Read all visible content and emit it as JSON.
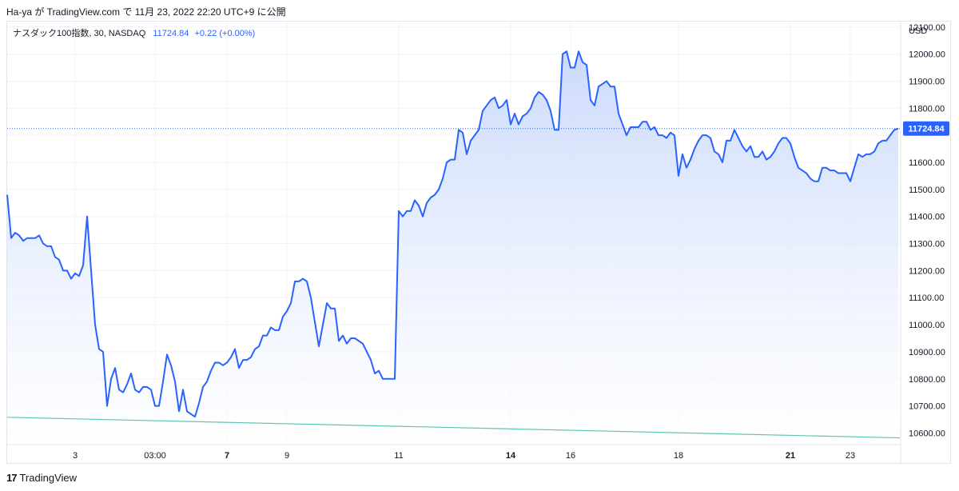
{
  "header": {
    "publish_line": "Ha-ya が TradingView.com で 11月 23, 2022 22:20 UTC+9 に公開"
  },
  "legend": {
    "symbol": "ナスダック100指数, 30, NASDAQ",
    "price": "11724.84",
    "change": "+0.22 (+0.00%)"
  },
  "footer": {
    "logo_glyph": "17",
    "brand": "TradingView"
  },
  "colors": {
    "line": "#2962ff",
    "area_top": "#c6d6fb",
    "area_bottom": "#ffffff",
    "trendline": "#5fc4b3",
    "price_label_bg": "#2962ff",
    "grid": "#f0f3fa"
  },
  "chart_data": {
    "type": "area",
    "currency_label": "USD",
    "last_price_label": "11724.84",
    "last_price": 11724.84,
    "ylim": [
      10560,
      12120
    ],
    "y_ticks": [
      {
        "value": 10600,
        "label": "10600.00"
      },
      {
        "value": 10700,
        "label": "10700.00"
      },
      {
        "value": 10800,
        "label": "10800.00"
      },
      {
        "value": 10900,
        "label": "10900.00"
      },
      {
        "value": 11000,
        "label": "11000.00"
      },
      {
        "value": 11100,
        "label": "11100.00"
      },
      {
        "value": 11200,
        "label": "11200.00"
      },
      {
        "value": 11300,
        "label": "11300.00"
      },
      {
        "value": 11400,
        "label": "11400.00"
      },
      {
        "value": 11500,
        "label": "11500.00"
      },
      {
        "value": 11600,
        "label": "11600.00"
      },
      {
        "value": 11700,
        "label": "11700.00"
      },
      {
        "value": 11800,
        "label": "11800.00"
      },
      {
        "value": 11900,
        "label": "11900.00"
      },
      {
        "value": 12000,
        "label": "12000.00"
      },
      {
        "value": 12100,
        "label": "12100.00"
      }
    ],
    "x_ticks": [
      {
        "index": 17,
        "label": "3",
        "bold": false
      },
      {
        "index": 37,
        "label": "03:00",
        "bold": false
      },
      {
        "index": 55,
        "label": "7",
        "bold": true
      },
      {
        "index": 70,
        "label": "9",
        "bold": false
      },
      {
        "index": 98,
        "label": "11",
        "bold": false
      },
      {
        "index": 126,
        "label": "14",
        "bold": true
      },
      {
        "index": 141,
        "label": "16",
        "bold": false
      },
      {
        "index": 168,
        "label": "18",
        "bold": false
      },
      {
        "index": 196,
        "label": "21",
        "bold": true
      },
      {
        "index": 211,
        "label": "23",
        "bold": false
      }
    ],
    "values": [
      11480,
      11320,
      11340,
      11330,
      11310,
      11320,
      11320,
      11320,
      11330,
      11300,
      11290,
      11290,
      11250,
      11240,
      11200,
      11200,
      11170,
      11190,
      11180,
      11220,
      11400,
      11200,
      11000,
      10910,
      10900,
      10700,
      10800,
      10840,
      10760,
      10750,
      10780,
      10820,
      10760,
      10750,
      10770,
      10770,
      10760,
      10700,
      10700,
      10790,
      10890,
      10850,
      10790,
      10680,
      10760,
      10680,
      10670,
      10660,
      10710,
      10770,
      10790,
      10830,
      10860,
      10860,
      10850,
      10860,
      10880,
      10910,
      10840,
      10870,
      10870,
      10880,
      10910,
      10920,
      10960,
      10960,
      10990,
      10980,
      10980,
      11030,
      11050,
      11080,
      11160,
      11160,
      11170,
      11160,
      11100,
      11010,
      10920,
      11000,
      11080,
      11060,
      11060,
      10940,
      10960,
      10930,
      10950,
      10950,
      10940,
      10930,
      10900,
      10870,
      10820,
      10830,
      10800,
      10800,
      10800,
      10800,
      11420,
      11400,
      11420,
      11420,
      11460,
      11440,
      11400,
      11450,
      11470,
      11480,
      11500,
      11540,
      11600,
      11610,
      11610,
      11720,
      11710,
      11630,
      11680,
      11700,
      11720,
      11790,
      11810,
      11830,
      11840,
      11800,
      11810,
      11830,
      11740,
      11780,
      11740,
      11770,
      11780,
      11800,
      11840,
      11860,
      11850,
      11830,
      11790,
      11720,
      11720,
      12000,
      12010,
      11950,
      11950,
      12010,
      11970,
      11960,
      11830,
      11810,
      11880,
      11890,
      11900,
      11880,
      11880,
      11780,
      11740,
      11700,
      11730,
      11730,
      11730,
      11750,
      11750,
      11720,
      11730,
      11700,
      11700,
      11690,
      11710,
      11700,
      11550,
      11630,
      11580,
      11610,
      11650,
      11680,
      11700,
      11700,
      11690,
      11640,
      11630,
      11600,
      11680,
      11680,
      11720,
      11690,
      11660,
      11640,
      11660,
      11620,
      11620,
      11640,
      11610,
      11620,
      11640,
      11670,
      11690,
      11690,
      11670,
      11620,
      11580,
      11570,
      11560,
      11540,
      11530,
      11530,
      11580,
      11580,
      11570,
      11570,
      11560,
      11560,
      11560,
      11530,
      11580,
      11630,
      11620,
      11630,
      11630,
      11640,
      11670,
      11680,
      11680,
      11700,
      11720,
      11724.84
    ],
    "trendline": {
      "start_value": 10658,
      "end_value": 10582
    }
  }
}
